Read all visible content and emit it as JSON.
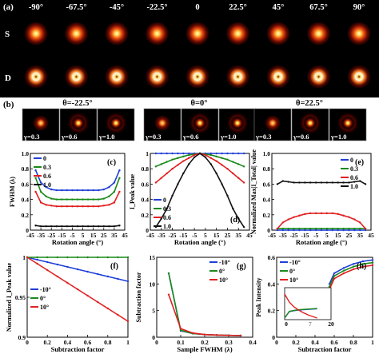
{
  "panel_a": {
    "label": "(a)",
    "angles": [
      "-90°",
      "-67.5°",
      "-45°",
      "-22.5°",
      "0",
      "22.5°",
      "45°",
      "67.5°",
      "90°"
    ],
    "rows": [
      "S",
      "D"
    ]
  },
  "panel_b": {
    "label": "(b)",
    "groups": [
      {
        "title": "θ=-22.5°",
        "gammas": [
          "γ=0.3",
          "γ=0.6",
          "γ=1.0"
        ]
      },
      {
        "title": "θ=0°",
        "gammas": [
          "γ=0.3",
          "γ=0.6",
          "γ=1.0"
        ]
      },
      {
        "title": "θ=22.5°",
        "gammas": [
          "γ=0.3",
          "γ=0.6",
          "γ=1.0"
        ]
      }
    ]
  },
  "colors": {
    "s0": "#1f3fd6",
    "s1": "#1a8a1a",
    "s2": "#e02020",
    "s3": "#111111"
  },
  "chart_data": [
    {
      "id": "c",
      "label": "(c)",
      "type": "line",
      "xlabel": "Rotation angle (°)",
      "ylabel": "FWHM (λ)",
      "xlim": [
        -45,
        45
      ],
      "ylim": [
        0,
        1.0
      ],
      "xticks": [
        -45,
        -35,
        -25,
        -15,
        -5,
        5,
        15,
        25,
        35,
        45
      ],
      "xtick_labels": [
        "-45",
        "-35",
        "-25",
        "-15",
        "-5",
        "5",
        "15",
        "25",
        "35",
        "45"
      ],
      "yticks": [
        0,
        0.2,
        0.4,
        0.6,
        0.8,
        1.0
      ],
      "ytick_labels": [
        "0",
        "0.2",
        "0.4",
        "0.6",
        "0.8",
        "1.0"
      ],
      "legend": [
        "0",
        "0.3",
        "0.6",
        "1.0"
      ],
      "x": [
        -40,
        -35,
        -30,
        -25,
        -20,
        -15,
        -10,
        -5,
        0,
        5,
        10,
        15,
        20,
        25,
        30,
        35,
        40
      ],
      "series": [
        {
          "name": "0",
          "values": [
            0.78,
            0.62,
            0.56,
            0.53,
            0.52,
            0.52,
            0.52,
            0.52,
            0.52,
            0.52,
            0.52,
            0.52,
            0.52,
            0.53,
            0.56,
            0.62,
            0.78
          ]
        },
        {
          "name": "0.3",
          "values": [
            0.68,
            0.5,
            0.44,
            0.41,
            0.4,
            0.4,
            0.4,
            0.4,
            0.4,
            0.4,
            0.4,
            0.4,
            0.4,
            0.41,
            0.44,
            0.5,
            0.68
          ]
        },
        {
          "name": "0.6",
          "values": [
            0.5,
            0.36,
            0.33,
            0.32,
            0.31,
            0.31,
            0.31,
            0.31,
            0.31,
            0.31,
            0.31,
            0.31,
            0.31,
            0.32,
            0.33,
            0.36,
            0.5
          ]
        },
        {
          "name": "1.0",
          "values": [
            0.06,
            0.05,
            0.05,
            0.05,
            0.05,
            0.05,
            0.05,
            0.05,
            0.05,
            0.05,
            0.05,
            0.05,
            0.05,
            0.05,
            0.05,
            0.05,
            0.06
          ]
        }
      ]
    },
    {
      "id": "d",
      "label": "(d)",
      "type": "line",
      "xlabel": "Rotation angle (°)",
      "ylabel": "I_Peak value",
      "xlim": [
        -45,
        45
      ],
      "ylim": [
        0,
        1.0
      ],
      "xticks": [
        -45,
        -35,
        -25,
        -15,
        -5,
        5,
        15,
        25,
        35,
        45
      ],
      "xtick_labels": [
        "-45",
        "-35",
        "-25",
        "-15",
        "-5",
        "5",
        "15",
        "25",
        "35",
        "45"
      ],
      "yticks": [
        0,
        0.2,
        0.4,
        0.6,
        0.8,
        1
      ],
      "ytick_labels": [
        "0",
        "0.2",
        "0.4",
        "0.6",
        "0.8",
        "1"
      ],
      "legend": [
        "0",
        "0.3",
        "0.6",
        "1.0"
      ],
      "x": [
        -40,
        -35,
        -30,
        -25,
        -20,
        -15,
        -10,
        -5,
        0,
        5,
        10,
        15,
        20,
        25,
        30,
        35,
        40
      ],
      "series": [
        {
          "name": "0",
          "values": [
            1,
            1,
            1,
            1,
            1,
            1,
            1,
            1,
            1,
            1,
            1,
            1,
            1,
            1,
            1,
            1,
            1
          ]
        },
        {
          "name": "0.3",
          "values": [
            0.83,
            0.86,
            0.89,
            0.92,
            0.94,
            0.96,
            0.98,
            0.99,
            1.0,
            0.99,
            0.98,
            0.96,
            0.94,
            0.92,
            0.89,
            0.86,
            0.83
          ]
        },
        {
          "name": "0.6",
          "values": [
            0.62,
            0.68,
            0.74,
            0.8,
            0.85,
            0.9,
            0.94,
            0.98,
            1.0,
            0.98,
            0.94,
            0.9,
            0.85,
            0.8,
            0.74,
            0.68,
            0.62
          ]
        },
        {
          "name": "1.0",
          "values": [
            0.04,
            0.15,
            0.28,
            0.45,
            0.6,
            0.74,
            0.86,
            0.95,
            1.0,
            0.95,
            0.86,
            0.74,
            0.6,
            0.45,
            0.28,
            0.15,
            0.04
          ]
        }
      ]
    },
    {
      "id": "e",
      "label": "(e)",
      "type": "line",
      "xlabel": "Rotation angle (°)",
      "ylabel": "Normalized Max|I_Total| value",
      "xlim": [
        -45,
        45
      ],
      "ylim": [
        0,
        1.0
      ],
      "xticks": [
        -45,
        -35,
        -25,
        -15,
        -5,
        5,
        15,
        25,
        35,
        45
      ],
      "xtick_labels": [
        "-45",
        "-35",
        "-25",
        "-15",
        "-5",
        "5",
        "15",
        "25",
        "35",
        "45"
      ],
      "yticks": [
        0,
        0.2,
        0.4,
        0.6,
        0.8,
        1.0
      ],
      "ytick_labels": [
        "0",
        "0.2",
        "0.4",
        "0.6",
        "0.8",
        "1.0"
      ],
      "legend": [
        "0",
        "0.3",
        "0.6",
        "1.0"
      ],
      "x": [
        -40,
        -35,
        -30,
        -25,
        -20,
        -15,
        -10,
        -5,
        0,
        5,
        10,
        15,
        20,
        25,
        30,
        35,
        40
      ],
      "series": [
        {
          "name": "0",
          "values": [
            0,
            0,
            0,
            0,
            0,
            0,
            0,
            0,
            0,
            0,
            0,
            0,
            0,
            0,
            0,
            0,
            0
          ]
        },
        {
          "name": "0.3",
          "values": [
            0.02,
            0.02,
            0.02,
            0.02,
            0.02,
            0.02,
            0.02,
            0.02,
            0.02,
            0.02,
            0.02,
            0.02,
            0.02,
            0.02,
            0.02,
            0.02,
            0.02
          ]
        },
        {
          "name": "0.6",
          "values": [
            0.02,
            0.1,
            0.14,
            0.17,
            0.19,
            0.21,
            0.22,
            0.22,
            0.22,
            0.22,
            0.22,
            0.21,
            0.19,
            0.17,
            0.14,
            0.1,
            0.02
          ]
        },
        {
          "name": "1.0",
          "values": [
            0.6,
            0.64,
            0.63,
            0.62,
            0.62,
            0.62,
            0.62,
            0.62,
            0.62,
            0.62,
            0.62,
            0.62,
            0.62,
            0.62,
            0.63,
            0.64,
            0.6
          ]
        }
      ]
    },
    {
      "id": "f",
      "label": "(f)",
      "type": "line",
      "xlabel": "Subtraction factor",
      "ylabel": "Normalized I_Peak value",
      "xlim": [
        0,
        1
      ],
      "ylim": [
        0.9,
        1.0
      ],
      "xticks": [
        0,
        0.2,
        0.4,
        0.6,
        0.8,
        1
      ],
      "xtick_labels": [
        "0",
        "0.2",
        "0.4",
        "0.6",
        "0.8",
        "1"
      ],
      "yticks": [
        0.9,
        0.95,
        1.0
      ],
      "ytick_labels": [
        "0.9",
        "0.95",
        "1"
      ],
      "legend": [
        "-10°",
        "0°",
        "10°"
      ],
      "x": [
        0,
        0.1,
        0.2,
        0.3,
        0.4,
        0.5,
        0.6,
        0.7,
        0.8,
        0.9,
        1.0
      ],
      "series": [
        {
          "name": "-10°",
          "values": [
            1,
            0.997,
            0.994,
            0.991,
            0.988,
            0.985,
            0.982,
            0.979,
            0.976,
            0.973,
            0.97
          ]
        },
        {
          "name": "0°",
          "values": [
            1,
            1,
            1,
            1,
            1,
            1,
            1,
            1,
            1,
            1,
            1
          ]
        },
        {
          "name": "10°",
          "values": [
            1,
            0.992,
            0.984,
            0.976,
            0.968,
            0.96,
            0.952,
            0.944,
            0.936,
            0.928,
            0.92
          ]
        }
      ]
    },
    {
      "id": "g",
      "label": "(g)",
      "type": "line",
      "xlabel": "Sample FWHM (λ)",
      "ylabel": "Subtraction factor",
      "xlim": [
        0,
        0.4
      ],
      "ylim": [
        0,
        15
      ],
      "xticks": [
        0,
        0.1,
        0.2,
        0.3,
        0.4
      ],
      "xtick_labels": [
        "0",
        "0.1",
        "0.2",
        "0.3",
        "0.4"
      ],
      "yticks": [
        0,
        5,
        10,
        15
      ],
      "ytick_labels": [
        "0",
        "5",
        "10",
        "15"
      ],
      "legend": [
        "-10°",
        "0°",
        "10°"
      ],
      "x": [
        0.05,
        0.1,
        0.15,
        0.2,
        0.25,
        0.3,
        0.35
      ],
      "series": [
        {
          "name": "-10°",
          "values": [
            12.0,
            1.2,
            0.7,
            0.5,
            0.4,
            0.35,
            0.3
          ]
        },
        {
          "name": "0°",
          "values": [
            12.0,
            1.3,
            0.7,
            0.5,
            0.4,
            0.35,
            0.3
          ]
        },
        {
          "name": "10°",
          "values": [
            8.0,
            1.6,
            0.8,
            0.5,
            0.4,
            0.35,
            0.3
          ]
        }
      ]
    },
    {
      "id": "h",
      "label": "(h)",
      "type": "line",
      "xlabel": "Subtraction factor",
      "ylabel": "Peak Intensity",
      "xlim": [
        0,
        1
      ],
      "ylim": [
        0,
        0.6
      ],
      "xticks": [
        0,
        0.2,
        0.4,
        0.6,
        0.8,
        1
      ],
      "xtick_labels": [
        "0",
        "0.2",
        "0.4",
        "0.6",
        "0.8",
        "1"
      ],
      "yticks": [
        0,
        0.2,
        0.4,
        0.6
      ],
      "ytick_labels": [
        "0",
        "0.2",
        "0.4",
        "0.6"
      ],
      "legend": [
        "-10°",
        "0°",
        "10°"
      ],
      "x": [
        0.55,
        0.6,
        0.7,
        0.8,
        0.9,
        1.0
      ],
      "series": [
        {
          "name": "-10°",
          "values": [
            0.4,
            0.48,
            0.52,
            0.55,
            0.57,
            0.58
          ]
        },
        {
          "name": "0°",
          "values": [
            0.38,
            0.46,
            0.5,
            0.53,
            0.55,
            0.56
          ]
        },
        {
          "name": "10°",
          "values": [
            0.36,
            0.44,
            0.48,
            0.51,
            0.53,
            0.54
          ]
        }
      ],
      "inset": {
        "xlim": [
          0,
          20
        ],
        "ylim": [
          0,
          1
        ],
        "xtick_labels": [
          "0",
          "7",
          "20"
        ],
        "x": [
          0,
          2,
          4,
          6,
          8,
          10,
          12,
          14
        ],
        "series": [
          {
            "name": "-10°",
            "values": [
              0.05,
              0.25,
              0.28,
              0.3,
              0.31,
              0.32,
              0.33,
              0.34
            ]
          },
          {
            "name": "0°",
            "values": [
              0.05,
              0.26,
              0.29,
              0.31,
              0.32,
              0.33,
              0.34,
              0.35
            ]
          },
          {
            "name": "10°",
            "values": [
              0.8,
              0.55,
              0.4,
              0.3,
              0.22,
              0.15,
              0.1,
              0.05
            ]
          }
        ]
      }
    }
  ]
}
